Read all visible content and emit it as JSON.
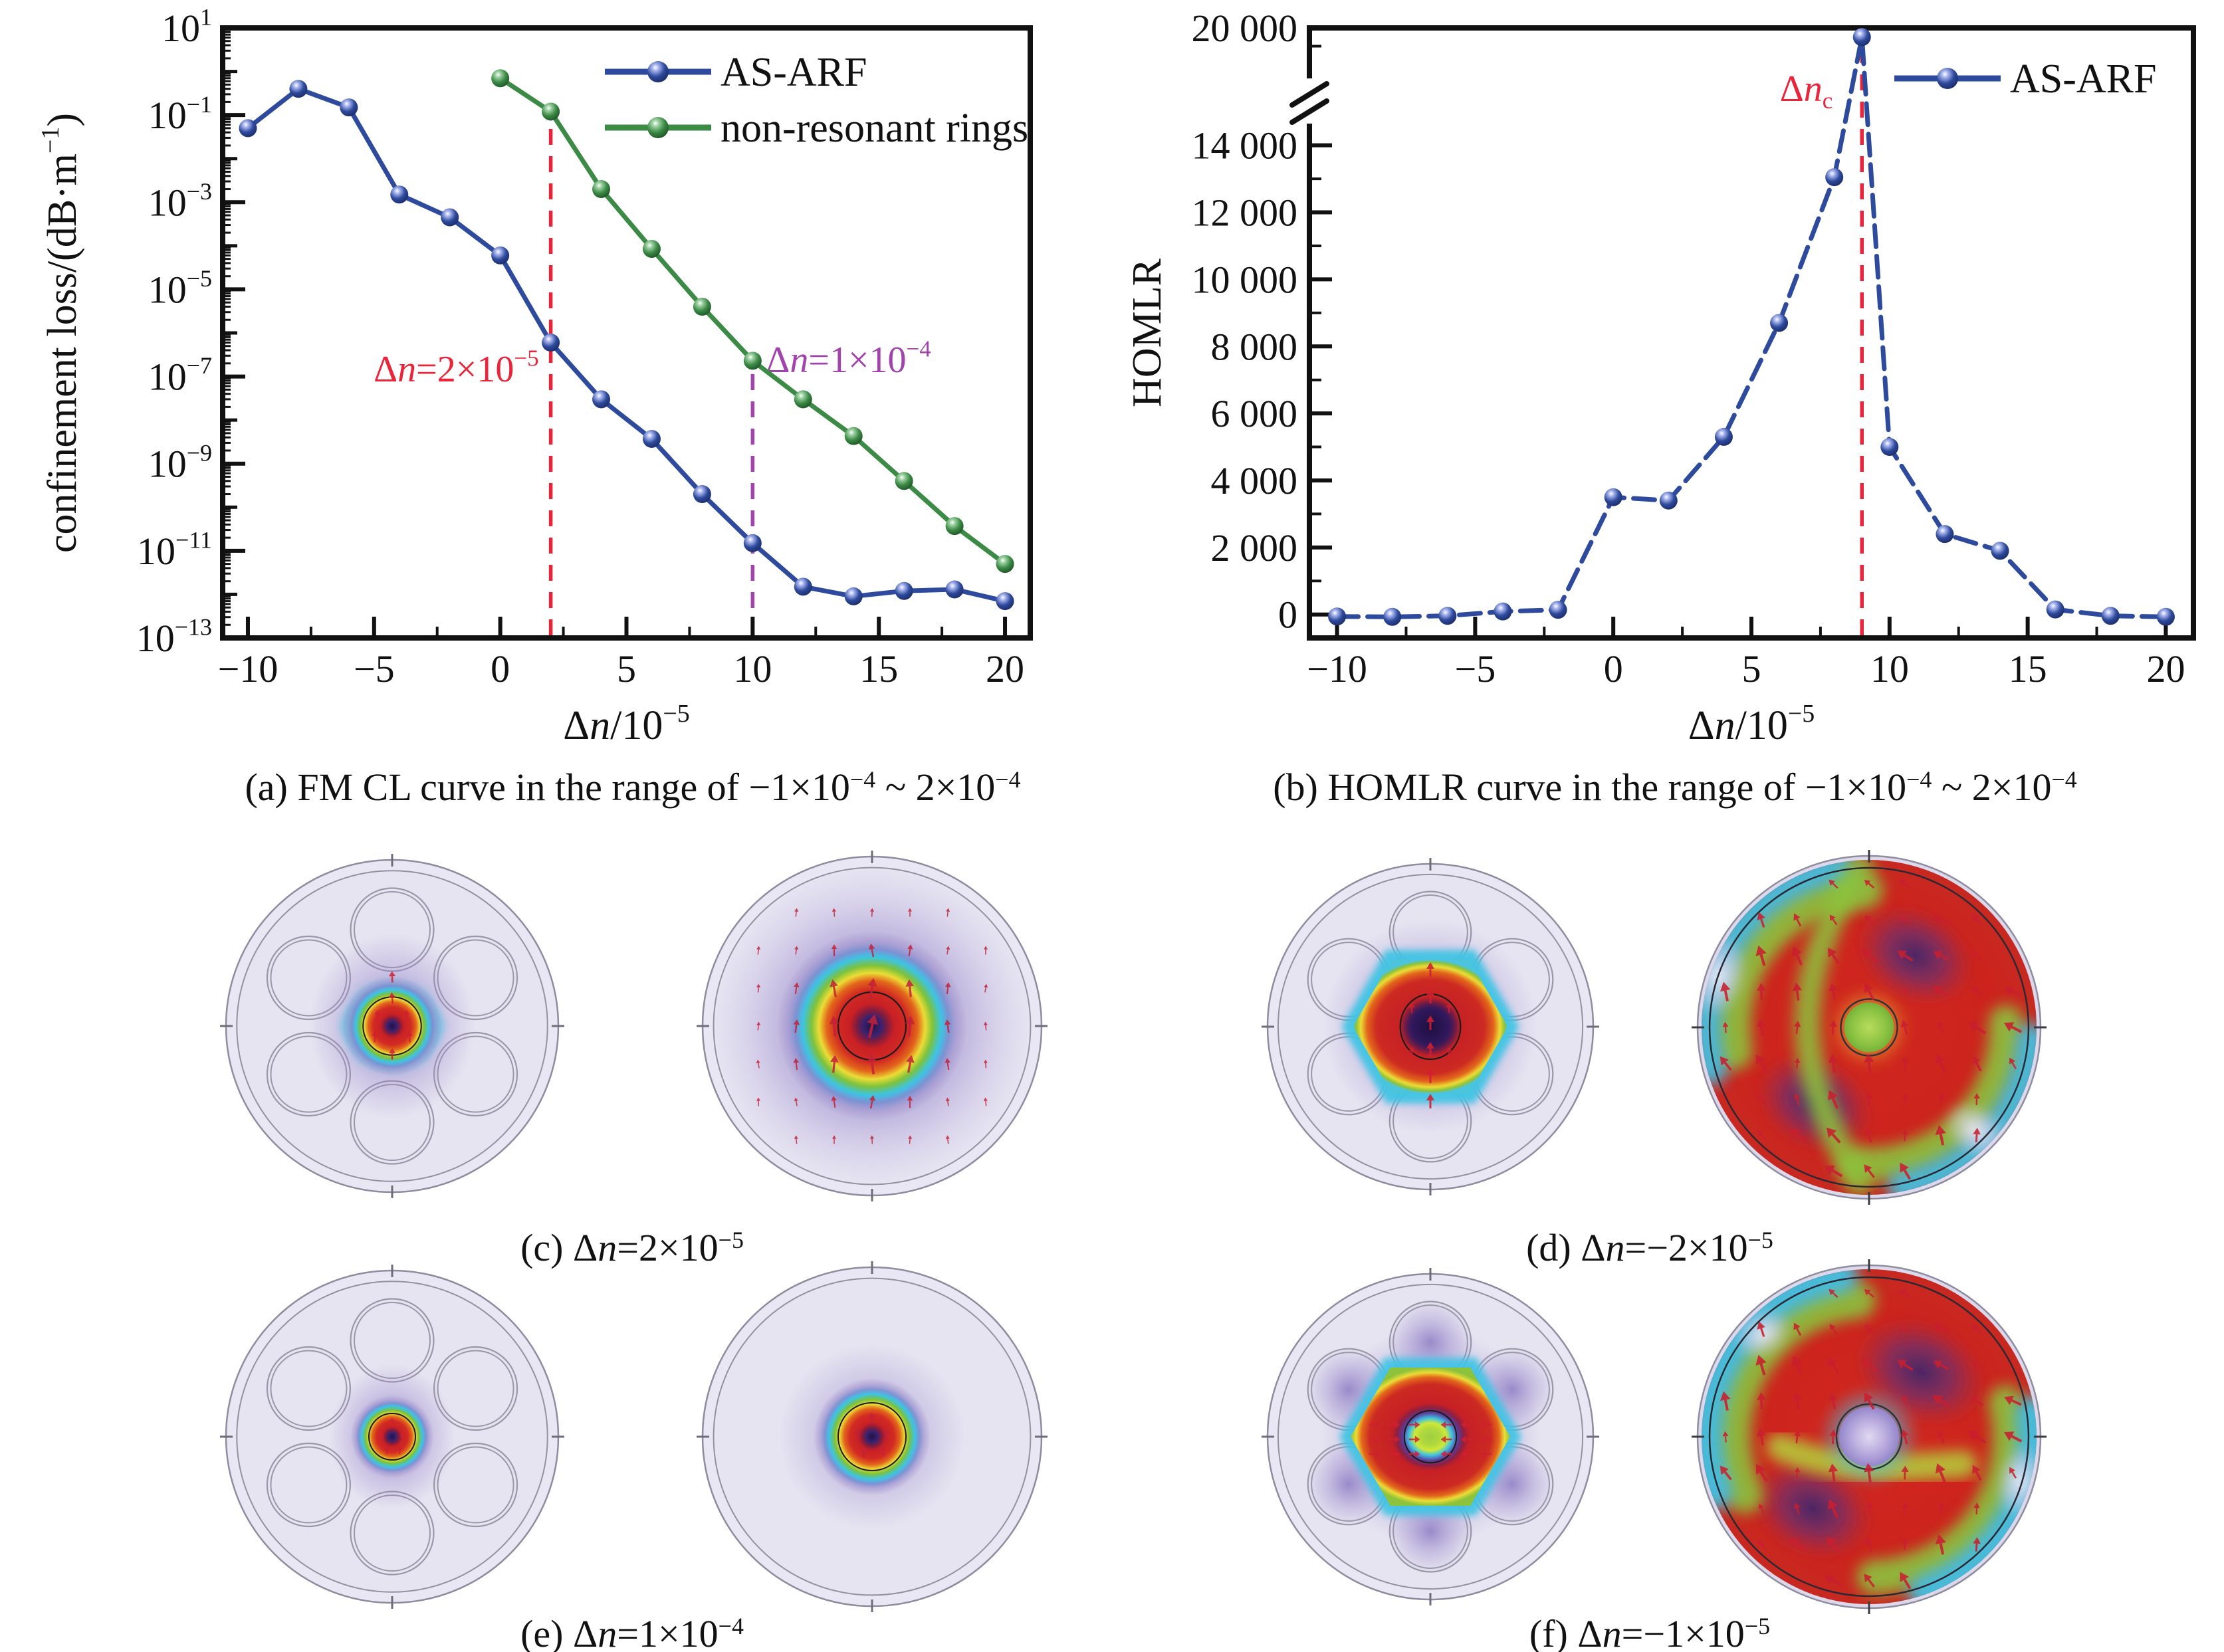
{
  "colors": {
    "series_blue": "#2e4a9c",
    "series_green": "#3b8a45",
    "annotation_red": "#e8253a",
    "annotation_purple": "#a242ad",
    "axis_black": "#111111",
    "fiber_lavender": "#e9e7f3",
    "mode_core_purple": "#241148",
    "mode_red": "#d02a22",
    "mode_yellow": "#ecdc36",
    "mode_green": "#7cc23c",
    "mode_cyan": "#3cc4e4",
    "hom_base_red": "#cc2a1e",
    "hom_blob_purple": "#3c2468",
    "quiver_red": "#c81f30"
  },
  "captions": {
    "a": [
      {
        "t": "(a) FM CL curve in the range of −1×10"
      },
      {
        "t": "−4",
        "sup": true
      },
      {
        "t": " ~ 2×10"
      },
      {
        "t": "−4",
        "sup": true
      }
    ],
    "b": [
      {
        "t": "(b) HOMLR curve in the range of −1×10"
      },
      {
        "t": "−4",
        "sup": true
      },
      {
        "t": " ~ 2×10"
      },
      {
        "t": "−4",
        "sup": true
      }
    ],
    "c": [
      {
        "t": "(c) Δ"
      },
      {
        "t": "n",
        "i": true
      },
      {
        "t": "=2×10"
      },
      {
        "t": "−5",
        "sup": true
      }
    ],
    "d": [
      {
        "t": "(d) Δ"
      },
      {
        "t": "n",
        "i": true
      },
      {
        "t": "=−2×10"
      },
      {
        "t": "−5",
        "sup": true
      }
    ],
    "e": [
      {
        "t": "(e) Δ"
      },
      {
        "t": "n",
        "i": true
      },
      {
        "t": "=1×10"
      },
      {
        "t": "−4",
        "sup": true
      }
    ],
    "f": [
      {
        "t": "(f) Δ"
      },
      {
        "t": "n",
        "i": true
      },
      {
        "t": "=−1×10"
      },
      {
        "t": "−5",
        "sup": true
      }
    ]
  },
  "chart_data": [
    {
      "id": "a",
      "type": "line",
      "title": "",
      "xlabel_rich": [
        {
          "t": "Δ"
        },
        {
          "t": "n",
          "i": true
        },
        {
          "t": "/10"
        },
        {
          "t": "−5",
          "sup": true
        }
      ],
      "ylabel_rich": [
        {
          "t": "confinement loss/(dB·m"
        },
        {
          "t": "−1",
          "sup": true
        },
        {
          "t": ")"
        }
      ],
      "xlim": [
        -11,
        21
      ],
      "x_ticks": [
        {
          "v": -10,
          "label": "−10"
        },
        {
          "v": -5,
          "label": "−5"
        },
        {
          "v": 0,
          "label": "0"
        },
        {
          "v": 5,
          "label": "5"
        },
        {
          "v": 10,
          "label": "10"
        },
        {
          "v": 15,
          "label": "15"
        },
        {
          "v": 20,
          "label": "20"
        }
      ],
      "x_minor_step": 2.5,
      "y_scale": "log10",
      "y_exp_range": [
        -13,
        1
      ],
      "y_labeled_exponents": [
        1,
        -1,
        -3,
        -5,
        -7,
        -9,
        -11,
        -13
      ],
      "grid": false,
      "legend_position": "top-right",
      "legend": [
        "AS-ARF",
        "non-resonant rings"
      ],
      "series": [
        {
          "name": "AS-ARF",
          "color": "#2e4a9c",
          "marker": "sphere",
          "dash": "",
          "x": [
            -10,
            -8,
            -6,
            -4,
            -2,
            0,
            2,
            4,
            6,
            8,
            10,
            12,
            14,
            16,
            18,
            20
          ],
          "y": [
            0.05,
            0.4,
            0.15,
            0.0015,
            0.00045,
            6e-05,
            6e-07,
            3e-08,
            3.7e-09,
            2e-10,
            1.5e-11,
            1.5e-12,
            9e-13,
            1.2e-12,
            1.3e-12,
            7e-13
          ]
        },
        {
          "name": "non-resonant rings",
          "color": "#3b8a45",
          "marker": "sphere",
          "dash": "",
          "x": [
            0,
            2,
            4,
            6,
            8,
            10,
            12,
            14,
            16,
            18,
            20
          ],
          "y": [
            0.7,
            0.12,
            0.002,
            8.5e-05,
            4e-06,
            2.3e-07,
            3e-08,
            4.3e-09,
            4e-10,
            3.7e-11,
            5e-12
          ]
        }
      ],
      "vlines": [
        {
          "x": 2,
          "y_top": 0.12,
          "color": "#e8253a",
          "style": "dashed",
          "label_rich": [
            {
              "t": "Δ"
            },
            {
              "t": "n",
              "i": true
            },
            {
              "t": "=2×10"
            },
            {
              "t": "−5",
              "sup": true
            }
          ],
          "label_anchor": "end"
        },
        {
          "x": 10,
          "y_top": 2.3e-07,
          "color": "#a242ad",
          "style": "dashed",
          "label_rich": [
            {
              "t": "Δ"
            },
            {
              "t": "n",
              "i": true
            },
            {
              "t": "=1×10"
            },
            {
              "t": "−4",
              "sup": true
            }
          ],
          "label_anchor": "start"
        }
      ]
    },
    {
      "id": "b",
      "type": "line",
      "title": "",
      "xlabel_rich": [
        {
          "t": "Δ"
        },
        {
          "t": "n",
          "i": true
        },
        {
          "t": "/10"
        },
        {
          "t": "−5",
          "sup": true
        }
      ],
      "ylabel_rich": [
        {
          "t": "HOMLR"
        }
      ],
      "xlim": [
        -11,
        21
      ],
      "x_ticks": [
        {
          "v": -10,
          "label": "−10"
        },
        {
          "v": -5,
          "label": "−5"
        },
        {
          "v": 0,
          "label": "0"
        },
        {
          "v": 5,
          "label": "5"
        },
        {
          "v": 10,
          "label": "10"
        },
        {
          "v": 15,
          "label": "15"
        },
        {
          "v": 20,
          "label": "20"
        }
      ],
      "x_minor_step": 2.5,
      "y_scale": "broken-linear",
      "y_break": {
        "lower_min": -700,
        "break_value": 14500,
        "upper_max": 20000,
        "lower_fraction": 0.835
      },
      "y_ticks": [
        {
          "v": 0,
          "label": "0"
        },
        {
          "v": 2000,
          "label": "2 000"
        },
        {
          "v": 4000,
          "label": "4 000"
        },
        {
          "v": 6000,
          "label": "6 000"
        },
        {
          "v": 8000,
          "label": "8 000"
        },
        {
          "v": 10000,
          "label": "10 000"
        },
        {
          "v": 12000,
          "label": "12 000"
        },
        {
          "v": 14000,
          "label": "14 000"
        },
        {
          "v": 20000,
          "label": "20 000"
        }
      ],
      "y_minor_ticks": [
        1000,
        3000,
        5000,
        7000,
        9000,
        11000,
        13000,
        19000
      ],
      "grid": false,
      "legend_position": "top-right",
      "legend": [
        "AS-ARF"
      ],
      "series": [
        {
          "name": "AS-ARF",
          "color": "#2e4a9c",
          "marker": "sphere",
          "dash": "32 14",
          "x": [
            -10,
            -8,
            -6,
            -4,
            -2,
            0,
            2,
            4,
            6,
            8,
            9,
            10,
            12,
            14,
            16,
            18,
            20
          ],
          "y": [
            -60,
            -70,
            -40,
            90,
            140,
            3500,
            3400,
            5300,
            8700,
            13050,
            19500,
            5000,
            2400,
            1900,
            150,
            -40,
            -70
          ]
        }
      ],
      "vlines": [
        {
          "x": 9,
          "y_top": 19500,
          "color": "#e8253a",
          "style": "dashed",
          "label_rich": [
            {
              "t": "Δ"
            },
            {
              "t": "n",
              "i": true
            },
            {
              "t": "c",
              "sub": true
            }
          ],
          "label_anchor": "end"
        }
      ]
    }
  ]
}
